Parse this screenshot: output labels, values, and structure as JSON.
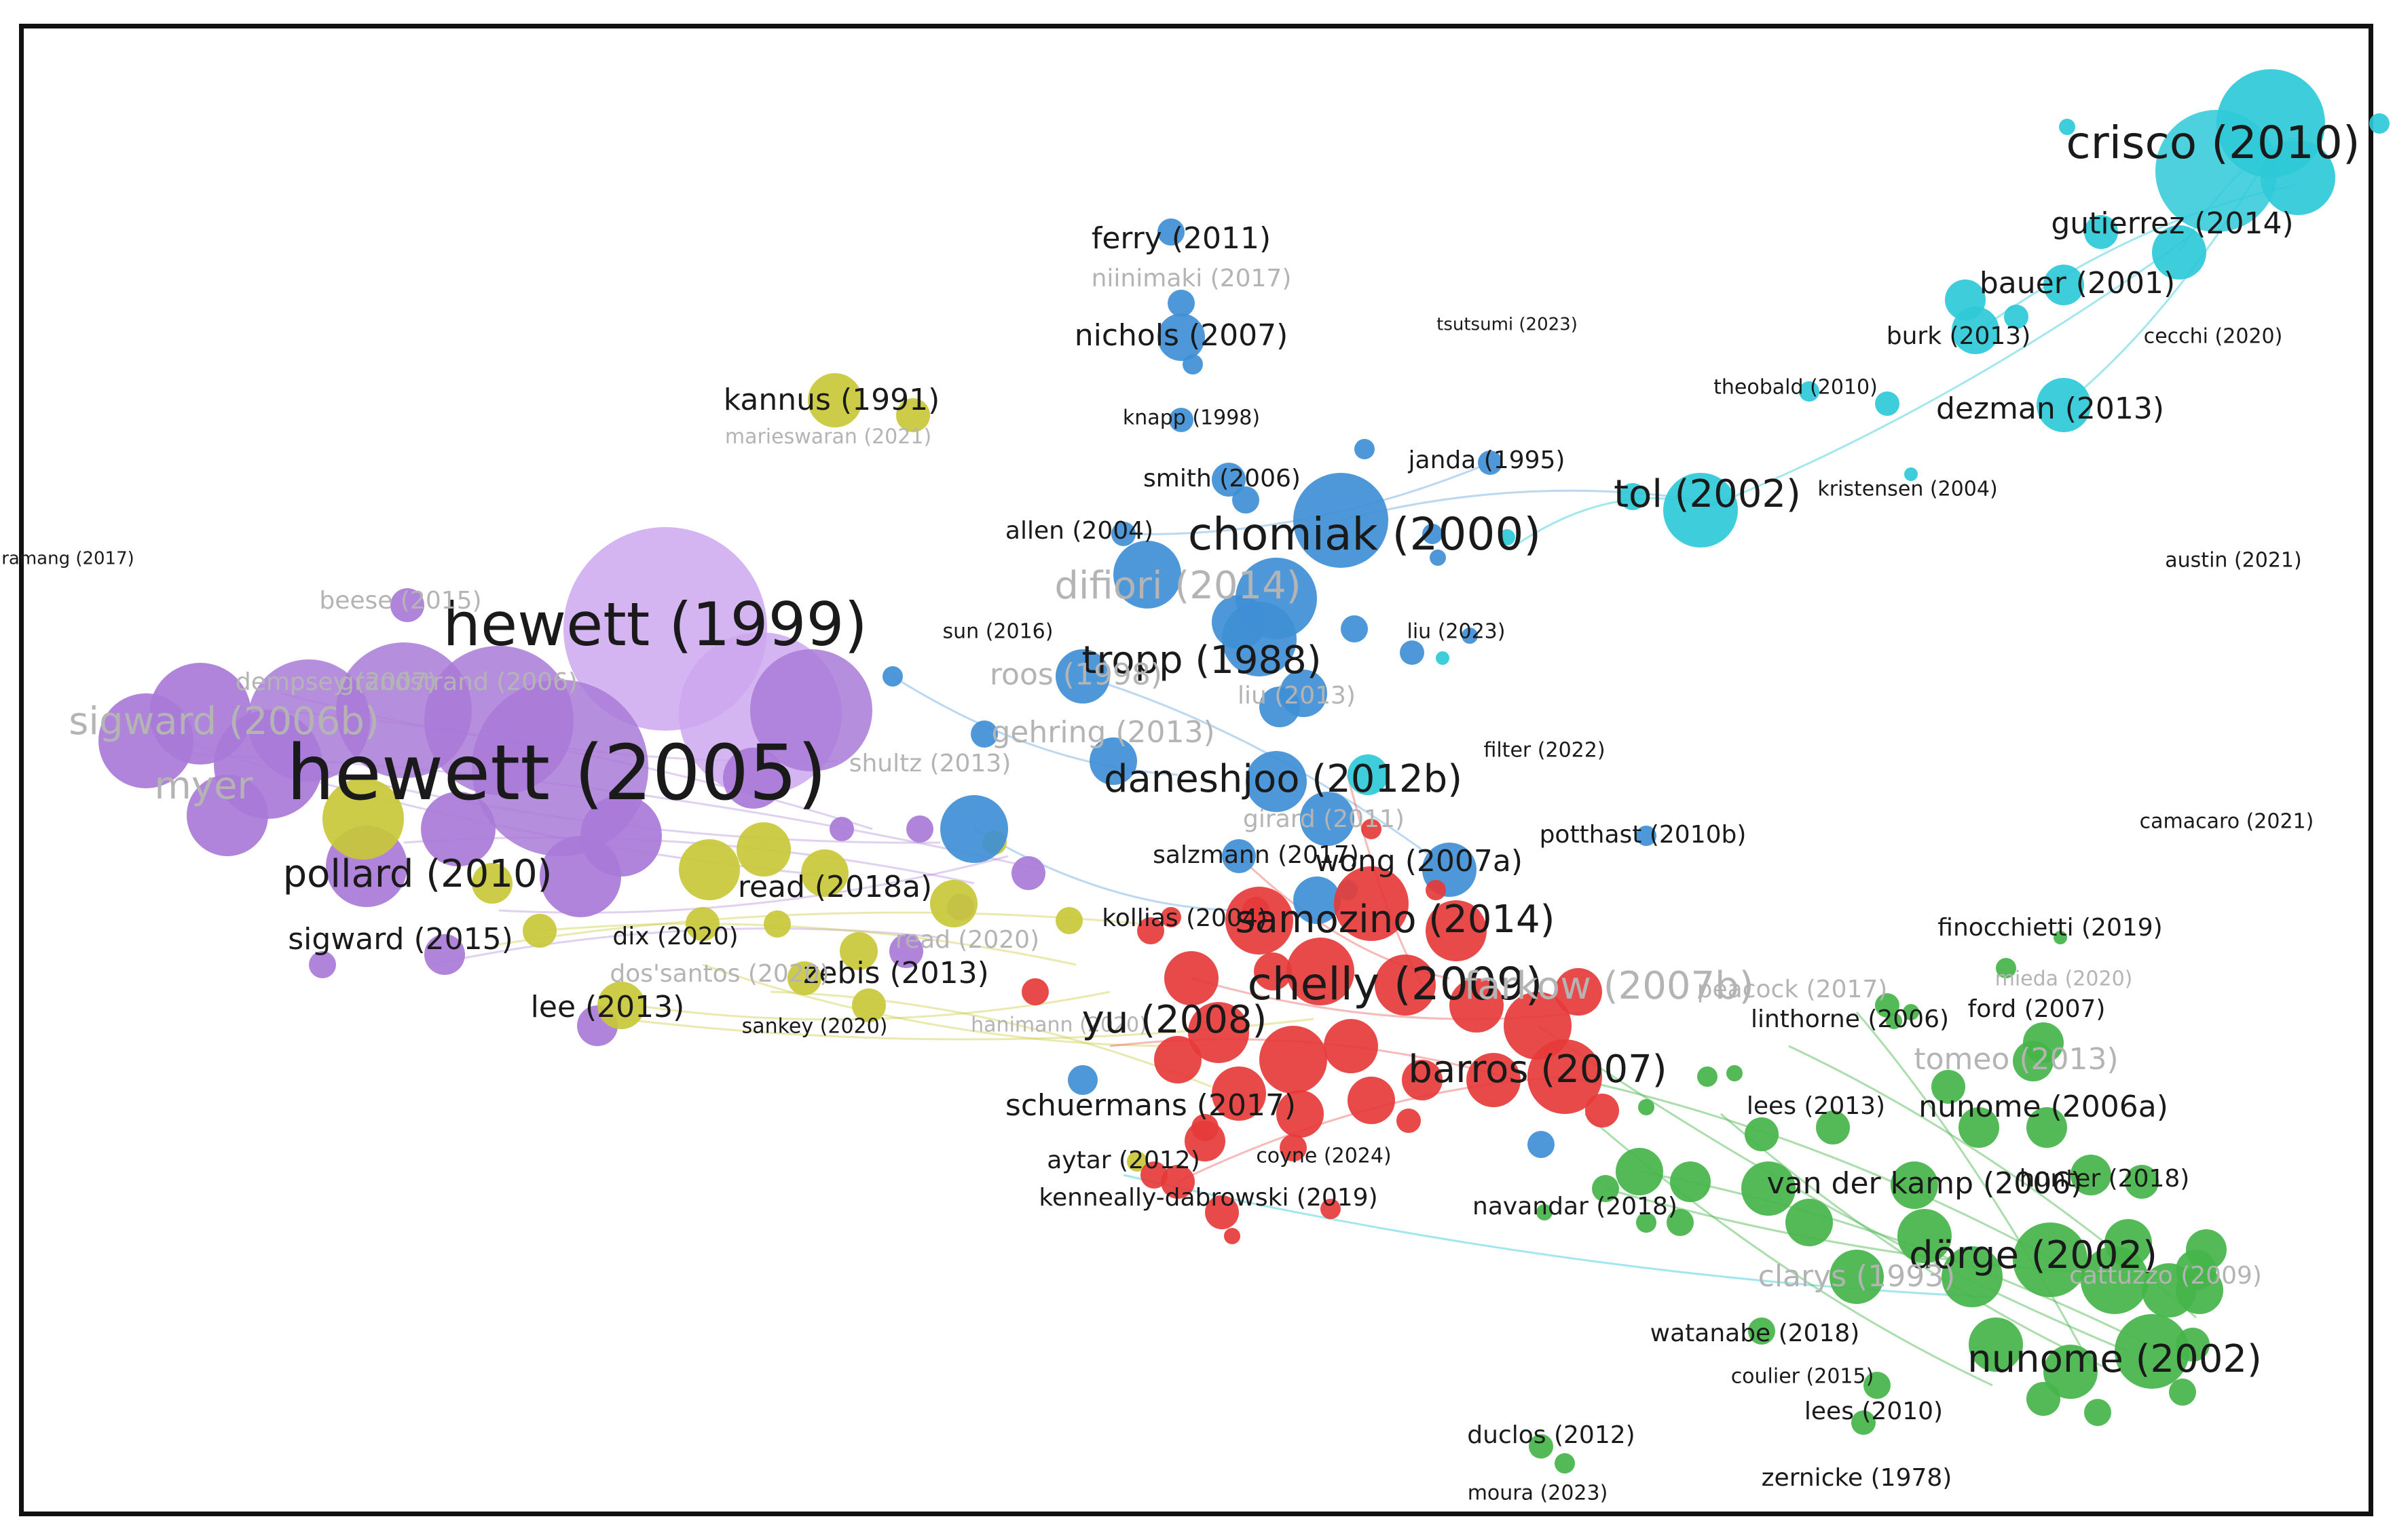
{
  "colors": {
    "purple": "#a97ad8",
    "purple_light": "#cda7ee",
    "yellow": "#c8c83a",
    "blue": "#3f8fd6",
    "cyan": "#2ec9d8",
    "red": "#e63a3a",
    "green": "#45b449",
    "label_dark": "#1a1a1a",
    "label_faint": "#b4b4b4"
  },
  "clusters": [
    {
      "id": "purple",
      "name": ""
    },
    {
      "id": "yellow",
      "name": ""
    },
    {
      "id": "blue",
      "name": ""
    },
    {
      "id": "cyan",
      "name": ""
    },
    {
      "id": "red",
      "name": ""
    },
    {
      "id": "green",
      "name": ""
    }
  ],
  "labels": [
    {
      "text": "hewett (2005)",
      "cluster": "purple",
      "weight": 10,
      "faint": false
    },
    {
      "text": "hewett (1999)",
      "cluster": "purple",
      "weight": 8,
      "faint": false
    },
    {
      "text": "pollard (2010)",
      "cluster": "purple",
      "weight": 5,
      "faint": false
    },
    {
      "text": "sigward (2015)",
      "cluster": "purple",
      "weight": 4,
      "faint": false
    },
    {
      "text": "lee (2013)",
      "cluster": "purple",
      "weight": 4,
      "faint": false
    },
    {
      "text": "sigward (2006b)",
      "cluster": "purple",
      "weight": 5,
      "faint": true
    },
    {
      "text": "dempsey (2007)",
      "cluster": "purple",
      "weight": 3,
      "faint": true
    },
    {
      "text": "grandstrand (2006)",
      "cluster": "purple",
      "weight": 3,
      "faint": true
    },
    {
      "text": "beese (2015)",
      "cluster": "purple",
      "weight": 3,
      "faint": true
    },
    {
      "text": "myer",
      "cluster": "purple",
      "weight": 5,
      "faint": true
    },
    {
      "text": "shultz (2013)",
      "cluster": "purple",
      "weight": 3,
      "faint": true
    },
    {
      "text": "ramang (2017)",
      "cluster": "purple",
      "weight": 1,
      "faint": false
    },
    {
      "text": "kannus (1991)",
      "cluster": "yellow",
      "weight": 4,
      "faint": false
    },
    {
      "text": "marieswaran (2021)",
      "cluster": "yellow",
      "weight": 2,
      "faint": true
    },
    {
      "text": "read (2018a)",
      "cluster": "yellow",
      "weight": 4,
      "faint": false
    },
    {
      "text": "zebis (2013)",
      "cluster": "yellow",
      "weight": 4,
      "faint": false
    },
    {
      "text": "dix (2020)",
      "cluster": "yellow",
      "weight": 3,
      "faint": false
    },
    {
      "text": "dos'santos (2020)",
      "cluster": "yellow",
      "weight": 3,
      "faint": true
    },
    {
      "text": "read (2020)",
      "cluster": "yellow",
      "weight": 3,
      "faint": true
    },
    {
      "text": "sankey (2020)",
      "cluster": "yellow",
      "weight": 2,
      "faint": false
    },
    {
      "text": "hanimann (2020)",
      "cluster": "yellow",
      "weight": 2,
      "faint": true
    },
    {
      "text": "ferry (2011)",
      "cluster": "blue",
      "weight": 4,
      "faint": false
    },
    {
      "text": "niinimaki (2017)",
      "cluster": "blue",
      "weight": 3,
      "faint": true
    },
    {
      "text": "nichols (2007)",
      "cluster": "blue",
      "weight": 4,
      "faint": false
    },
    {
      "text": "knapp (1998)",
      "cluster": "blue",
      "weight": 2,
      "faint": false
    },
    {
      "text": "smith (2006)",
      "cluster": "blue",
      "weight": 3,
      "faint": false
    },
    {
      "text": "allen (2004)",
      "cluster": "blue",
      "weight": 3,
      "faint": false
    },
    {
      "text": "chomiak (2000)",
      "cluster": "blue",
      "weight": 6,
      "faint": false
    },
    {
      "text": "difiori (2014)",
      "cluster": "blue",
      "weight": 5,
      "faint": true
    },
    {
      "text": "tropp (1988)",
      "cluster": "blue",
      "weight": 5,
      "faint": false
    },
    {
      "text": "roos (1998)",
      "cluster": "blue",
      "weight": 4,
      "faint": true
    },
    {
      "text": "sun (2016)",
      "cluster": "blue",
      "weight": 2,
      "faint": false
    },
    {
      "text": "liu (2013)",
      "cluster": "blue",
      "weight": 3,
      "faint": true
    },
    {
      "text": "gehring (2013)",
      "cluster": "blue",
      "weight": 4,
      "faint": true
    },
    {
      "text": "daneshjoo (2012b)",
      "cluster": "blue",
      "weight": 5,
      "faint": false
    },
    {
      "text": "girard (2011)",
      "cluster": "blue",
      "weight": 3,
      "faint": true
    },
    {
      "text": "salzmann (2017)",
      "cluster": "blue",
      "weight": 3,
      "faint": false
    },
    {
      "text": "wong (2007a)",
      "cluster": "blue",
      "weight": 4,
      "faint": false
    },
    {
      "text": "janda (1995)",
      "cluster": "blue",
      "weight": 3,
      "faint": false
    },
    {
      "text": "liu (2023)",
      "cluster": "blue",
      "weight": 2,
      "faint": false
    },
    {
      "text": "potthast (2010b)",
      "cluster": "blue",
      "weight": 3,
      "faint": false
    },
    {
      "text": "crisco (2010)",
      "cluster": "cyan",
      "weight": 6,
      "faint": false
    },
    {
      "text": "gutierrez (2014)",
      "cluster": "cyan",
      "weight": 4,
      "faint": false
    },
    {
      "text": "bauer (2001)",
      "cluster": "cyan",
      "weight": 4,
      "faint": false
    },
    {
      "text": "burk (2013)",
      "cluster": "cyan",
      "weight": 3,
      "faint": false
    },
    {
      "text": "cecchi (2020)",
      "cluster": "cyan",
      "weight": 2,
      "faint": false
    },
    {
      "text": "theobald (2010)",
      "cluster": "cyan",
      "weight": 2,
      "faint": false
    },
    {
      "text": "dezman (2013)",
      "cluster": "cyan",
      "weight": 4,
      "faint": false
    },
    {
      "text": "tol (2002)",
      "cluster": "cyan",
      "weight": 5,
      "faint": false
    },
    {
      "text": "kristensen (2004)",
      "cluster": "cyan",
      "weight": 2,
      "faint": false
    },
    {
      "text": "tsutsumi (2023)",
      "cluster": "cyan",
      "weight": 1,
      "faint": false
    },
    {
      "text": "austin (2021)",
      "cluster": "cyan",
      "weight": 2,
      "faint": false
    },
    {
      "text": "samozino (2014)",
      "cluster": "red",
      "weight": 5,
      "faint": false
    },
    {
      "text": "chelly (2009)",
      "cluster": "red",
      "weight": 6,
      "faint": false
    },
    {
      "text": "kollias (2004)",
      "cluster": "red",
      "weight": 3,
      "faint": false
    },
    {
      "text": "yu (2008)",
      "cluster": "red",
      "weight": 5,
      "faint": false
    },
    {
      "text": "barros (2007)",
      "cluster": "red",
      "weight": 5,
      "faint": false
    },
    {
      "text": "schuermans (2017)",
      "cluster": "red",
      "weight": 4,
      "faint": false
    },
    {
      "text": "aytar (2012)",
      "cluster": "red",
      "weight": 3,
      "faint": false
    },
    {
      "text": "kenneally-dabrowski (2019)",
      "cluster": "red",
      "weight": 3,
      "faint": false
    },
    {
      "text": "coyne (2024)",
      "cluster": "red",
      "weight": 2,
      "faint": false
    },
    {
      "text": "filter (2022)",
      "cluster": "red",
      "weight": 2,
      "faint": false
    },
    {
      "text": "farkow (2007b)",
      "cluster": "red",
      "weight": 5,
      "faint": true
    },
    {
      "text": "nunome (2002)",
      "cluster": "green",
      "weight": 5,
      "faint": false
    },
    {
      "text": "dörge (2002)",
      "cluster": "green",
      "weight": 5,
      "faint": false
    },
    {
      "text": "van der kamp (2006)",
      "cluster": "green",
      "weight": 4,
      "faint": false
    },
    {
      "text": "nunome (2006a)",
      "cluster": "green",
      "weight": 4,
      "faint": false
    },
    {
      "text": "tomeo (2013)",
      "cluster": "green",
      "weight": 4,
      "faint": true
    },
    {
      "text": "clarys (1993)",
      "cluster": "green",
      "weight": 4,
      "faint": true
    },
    {
      "text": "watanabe (2018)",
      "cluster": "green",
      "weight": 3,
      "faint": false
    },
    {
      "text": "linthorne (2006)",
      "cluster": "green",
      "weight": 3,
      "faint": false
    },
    {
      "text": "ford (2007)",
      "cluster": "green",
      "weight": 3,
      "faint": false
    },
    {
      "text": "lees (2013)",
      "cluster": "green",
      "weight": 3,
      "faint": false
    },
    {
      "text": "hunter (2018)",
      "cluster": "green",
      "weight": 3,
      "faint": false
    },
    {
      "text": "navandar (2018)",
      "cluster": "green",
      "weight": 3,
      "faint": false
    },
    {
      "text": "coulier (2015)",
      "cluster": "green",
      "weight": 2,
      "faint": false
    },
    {
      "text": "lees (2010)",
      "cluster": "green",
      "weight": 3,
      "faint": false
    },
    {
      "text": "duclos (2012)",
      "cluster": "green",
      "weight": 3,
      "faint": false
    },
    {
      "text": "zernicke (1978)",
      "cluster": "green",
      "weight": 3,
      "faint": false
    },
    {
      "text": "moura (2023)",
      "cluster": "green",
      "weight": 2,
      "faint": false
    },
    {
      "text": "finocchietti (2019)",
      "cluster": "green",
      "weight": 3,
      "faint": false
    },
    {
      "text": "camacaro (2021)",
      "cluster": "green",
      "weight": 2,
      "faint": false
    },
    {
      "text": "peacock (2017)",
      "cluster": "green",
      "weight": 3,
      "faint": true
    },
    {
      "text": "mieda (2020)",
      "cluster": "green",
      "weight": 2,
      "faint": true
    },
    {
      "text": "cattuzzo (2009)",
      "cluster": "green",
      "weight": 3,
      "faint": true
    }
  ]
}
